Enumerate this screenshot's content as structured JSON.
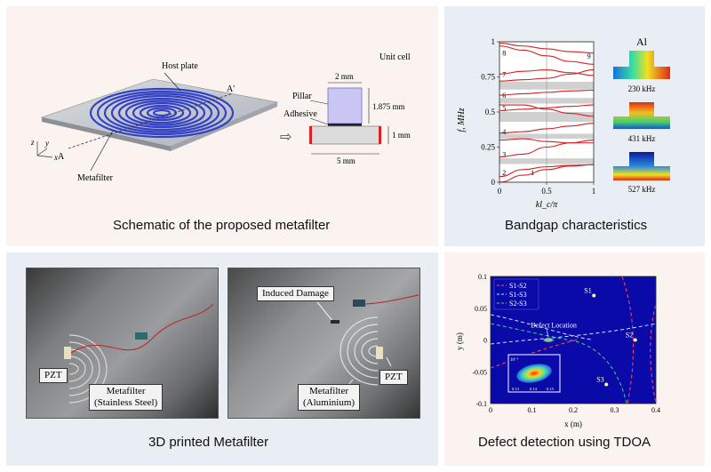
{
  "panels": {
    "schematic": {
      "caption": "Schematic of the proposed metafilter",
      "labels": {
        "host_plate": "Host plate",
        "a_prime": "A'",
        "a": "A",
        "metafilter": "Metafilter",
        "axis_z": "z",
        "axis_y": "y",
        "axis_x": "x",
        "unit_cell": "Unit cell",
        "pillar": "Pillar",
        "adhesive": "Adhesive",
        "dim_width_top": "2 mm",
        "dim_height_pillar": "1.875 mm",
        "dim_height_base": "1 mm",
        "dim_width_base": "5 mm",
        "arrow": "⇨"
      }
    },
    "bandgap": {
      "caption": "Bandgap characteristics",
      "material": "Al",
      "mode_labels": [
        "230 kHz",
        "431 kHz",
        "527 kHz"
      ]
    },
    "printed": {
      "caption": "3D printed Metafilter",
      "left_photo": {
        "pzt": "PZT",
        "metafilter_line1": "Metafilter",
        "metafilter_line2": "(Stainless Steel)"
      },
      "right_photo": {
        "damage": "Induced Damage",
        "pzt": "PZT",
        "metafilter_line1": "Metafilter",
        "metafilter_line2": "(Aluminium)"
      }
    },
    "defect": {
      "caption": "Defect detection using TDOA"
    }
  },
  "chart_data": [
    {
      "type": "line",
      "xlabel": "kl_c/π",
      "ylabel": "f, MHz",
      "xlim": [
        0,
        1
      ],
      "ylim": [
        0,
        1
      ],
      "xticks": [
        "0",
        "0.5",
        "1"
      ],
      "yticks": [
        "0",
        "0.25",
        "0.5",
        "0.75",
        "1"
      ],
      "band_labels": [
        "1",
        "2",
        "3",
        "4",
        "5",
        "6",
        "7",
        "8",
        "9"
      ],
      "band_gaps": [
        [
          0.13,
          0.17
        ],
        [
          0.31,
          0.345
        ],
        [
          0.43,
          0.5
        ],
        [
          0.56,
          0.6
        ],
        [
          0.66,
          0.715
        ]
      ],
      "series": [
        {
          "values": [
            [
              0,
              0
            ],
            [
              0.25,
              0.05
            ],
            [
              0.5,
              0.09
            ],
            [
              0.75,
              0.115
            ],
            [
              1,
              0.125
            ]
          ]
        },
        {
          "values": [
            [
              0,
              0.04
            ],
            [
              0.25,
              0.09
            ],
            [
              0.5,
              0.11
            ],
            [
              0.75,
              0.12
            ],
            [
              1,
              0.125
            ]
          ]
        },
        {
          "values": [
            [
              0,
              0.18
            ],
            [
              0.25,
              0.2
            ],
            [
              0.5,
              0.25
            ],
            [
              0.75,
              0.28
            ],
            [
              1,
              0.3
            ]
          ]
        },
        {
          "values": [
            [
              0,
              0.35
            ],
            [
              0.25,
              0.36
            ],
            [
              0.5,
              0.38
            ],
            [
              0.75,
              0.4
            ],
            [
              1,
              0.42
            ]
          ]
        },
        {
          "values": [
            [
              0,
              0.3
            ],
            [
              0.25,
              0.31
            ],
            [
              0.5,
              0.29
            ],
            [
              0.75,
              0.28
            ],
            [
              1,
              0.28
            ]
          ]
        },
        {
          "values": [
            [
              0,
              0.51
            ],
            [
              0.25,
              0.52
            ],
            [
              0.5,
              0.53
            ],
            [
              0.75,
              0.54
            ],
            [
              1,
              0.55
            ]
          ]
        },
        {
          "values": [
            [
              0,
              0.55
            ],
            [
              0.25,
              0.55
            ],
            [
              0.5,
              0.52
            ],
            [
              0.75,
              0.49
            ],
            [
              1,
              0.47
            ]
          ]
        },
        {
          "values": [
            [
              0,
              0.62
            ],
            [
              0.25,
              0.63
            ],
            [
              0.5,
              0.64
            ],
            [
              0.75,
              0.65
            ],
            [
              1,
              0.655
            ]
          ]
        },
        {
          "values": [
            [
              0,
              0.72
            ],
            [
              0.25,
              0.73
            ],
            [
              0.5,
              0.74
            ],
            [
              0.75,
              0.77
            ],
            [
              1,
              0.8
            ]
          ]
        },
        {
          "values": [
            [
              0,
              0.77
            ],
            [
              0.25,
              0.79
            ],
            [
              0.5,
              0.8
            ],
            [
              0.75,
              0.78
            ],
            [
              1,
              0.76
            ]
          ]
        },
        {
          "values": [
            [
              0,
              0.97
            ],
            [
              0.25,
              0.94
            ],
            [
              0.5,
              0.9
            ],
            [
              0.75,
              0.86
            ],
            [
              1,
              0.84
            ]
          ]
        },
        {
          "values": [
            [
              0,
              0.99
            ],
            [
              0.25,
              0.97
            ],
            [
              0.5,
              0.95
            ],
            [
              0.75,
              0.93
            ],
            [
              1,
              0.92
            ]
          ]
        }
      ]
    },
    {
      "type": "line",
      "xlabel": "x (m)",
      "ylabel": "y (m)",
      "xlim": [
        0,
        0.4
      ],
      "ylim": [
        -0.1,
        0.1
      ],
      "xticks": [
        "0",
        "0.1",
        "0.2",
        "0.3",
        "0.4"
      ],
      "yticks": [
        "0.1",
        "0.05",
        "0",
        "-0.05",
        "-0.1"
      ],
      "legend": [
        "S1-S2",
        "S1-S3",
        "S2-S3"
      ],
      "legend_colors": [
        "#ff4a6e",
        "#d8e4ff",
        "#3fd28a"
      ],
      "sensors": [
        {
          "name": "S1",
          "x": 0.25,
          "y": 0.07
        },
        {
          "name": "S2",
          "x": 0.35,
          "y": 0.0
        },
        {
          "name": "S3",
          "x": 0.28,
          "y": -0.07
        }
      ],
      "defect_label": "Defect Location",
      "defect": {
        "x": 0.14,
        "y": 0.0
      },
      "inset": {
        "scale_label": "10⁻³",
        "xticks": [
          "0.13",
          "0.14",
          "0.15"
        ]
      }
    }
  ]
}
